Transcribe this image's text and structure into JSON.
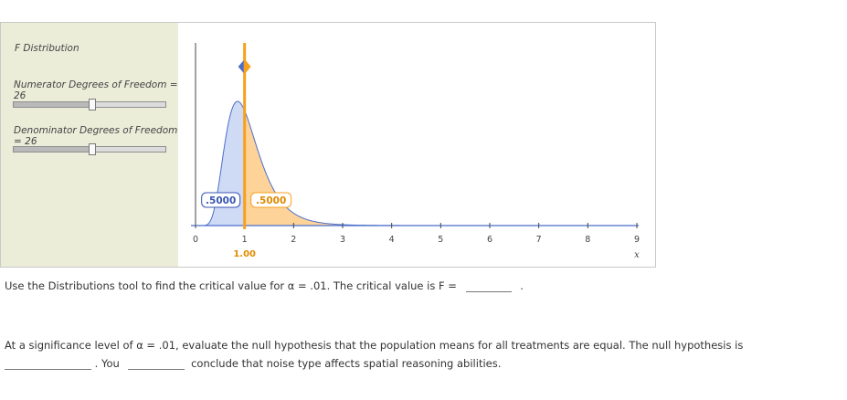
{
  "tool": {
    "title": "F Distribution",
    "numerator_label": "Numerator Degrees of Freedom = 26",
    "denominator_label": "Denominator Degrees of Freedom = 26",
    "numerator_df": 26,
    "denominator_df": 26,
    "slider_fraction": 0.52
  },
  "chart_data": {
    "type": "area",
    "title": "F Distribution",
    "xlabel": "x",
    "x_ticks": [
      "0",
      "1",
      "2",
      "3",
      "4",
      "5",
      "6",
      "7",
      "8",
      "9"
    ],
    "xlim": [
      0,
      9
    ],
    "critical_value": 1.0,
    "critical_label": "1.00",
    "left_area_label": ".5000",
    "right_area_label": ".5000",
    "df1": 26,
    "df2": 26,
    "colors": {
      "left_fill": "#cfdaf5",
      "right_fill": "#fdd39a",
      "curve": "#4a6ecb",
      "line": "#f7a01c",
      "left_text": "#3855b0",
      "right_text": "#e08a00"
    }
  },
  "question1": {
    "text": "Use the Distributions tool to find the critical value for α = .01. The critical value is F =",
    "after_blank": "."
  },
  "question2": {
    "text": "At a significance level of α = .01, evaluate the null hypothesis that the population means for all treatments are equal. The null hypothesis is",
    "mid": ". You",
    "end": "conclude that noise type affects spatial reasoning abilities."
  }
}
